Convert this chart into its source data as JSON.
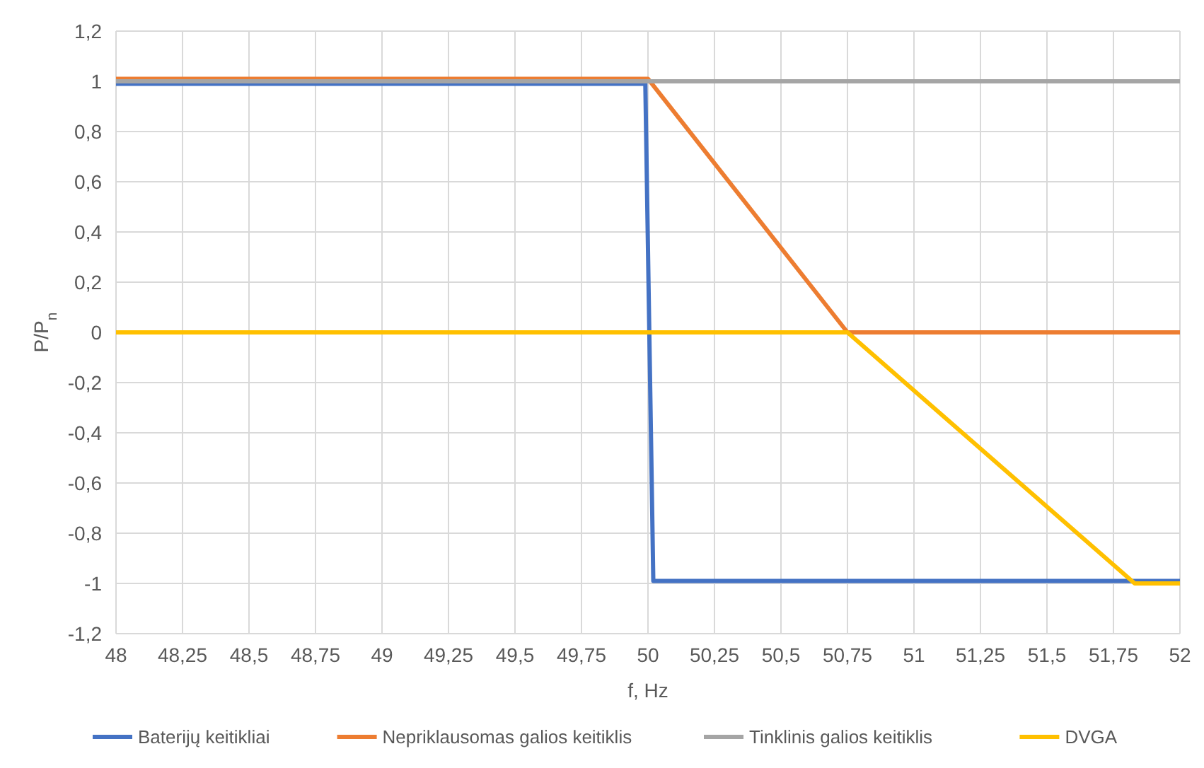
{
  "chart_data": {
    "type": "line",
    "xlabel": "f, Hz",
    "ylabel": "P/P$_{n}$",
    "xlim": [
      48,
      52
    ],
    "xticks": [
      48,
      {
        "value": 48.25,
        "label": "48,25"
      },
      {
        "value": 48.5,
        "label": "48,5"
      },
      {
        "value": 48.75,
        "label": "48,75"
      },
      49,
      {
        "value": 49.25,
        "label": "49,25"
      },
      {
        "value": 49.5,
        "label": "49,5"
      },
      {
        "value": 49.75,
        "label": "49,75"
      },
      50,
      {
        "value": 50.25,
        "label": "50,25"
      },
      {
        "value": 50.5,
        "label": "50,5"
      },
      {
        "value": 50.75,
        "label": "50,75"
      },
      51,
      {
        "value": 51.25,
        "label": "51,25"
      },
      {
        "value": 51.5,
        "label": "51,5"
      },
      {
        "value": 51.75,
        "label": "51,75"
      },
      52
    ],
    "ylim": [
      -1.2,
      1.2
    ],
    "yticks": [
      {
        "value": -1.2,
        "label": "-1,2"
      },
      -1,
      {
        "value": -0.8,
        "label": "-0,8"
      },
      {
        "value": -0.6,
        "label": "-0,6"
      },
      {
        "value": -0.4,
        "label": "-0,4"
      },
      {
        "value": -0.2,
        "label": "-0,2"
      },
      0,
      {
        "value": 0.2,
        "label": "0,2"
      },
      {
        "value": 0.4,
        "label": "0,4"
      },
      {
        "value": 0.6,
        "label": "0,6"
      },
      {
        "value": 0.8,
        "label": "0,8"
      },
      1,
      {
        "value": 1.2,
        "label": "1,2"
      }
    ],
    "grid": true,
    "legend": "bottom",
    "marker": "none",
    "line_style": "solid",
    "series": [
      {
        "name": "Baterijų keitikliai",
        "color": "#4472c4",
        "x": [
          48,
          49.99,
          50.02,
          52
        ],
        "values": [
          0.99,
          0.99,
          -0.99,
          -0.99
        ]
      },
      {
        "name": "Nepriklausomas galios keitiklis",
        "color": "#ed7d31",
        "x": [
          48,
          50,
          50.75,
          52
        ],
        "values": [
          1.01,
          1.01,
          0,
          0
        ]
      },
      {
        "name": "Tinklinis galios keitiklis",
        "color": "#a5a5a5",
        "x": [
          48,
          52
        ],
        "values": [
          1,
          1
        ]
      },
      {
        "name": "DVGA",
        "color": "#ffc000",
        "x": [
          48,
          50.75,
          51.83,
          52
        ],
        "values": [
          0,
          0,
          -1,
          -1
        ]
      }
    ]
  }
}
